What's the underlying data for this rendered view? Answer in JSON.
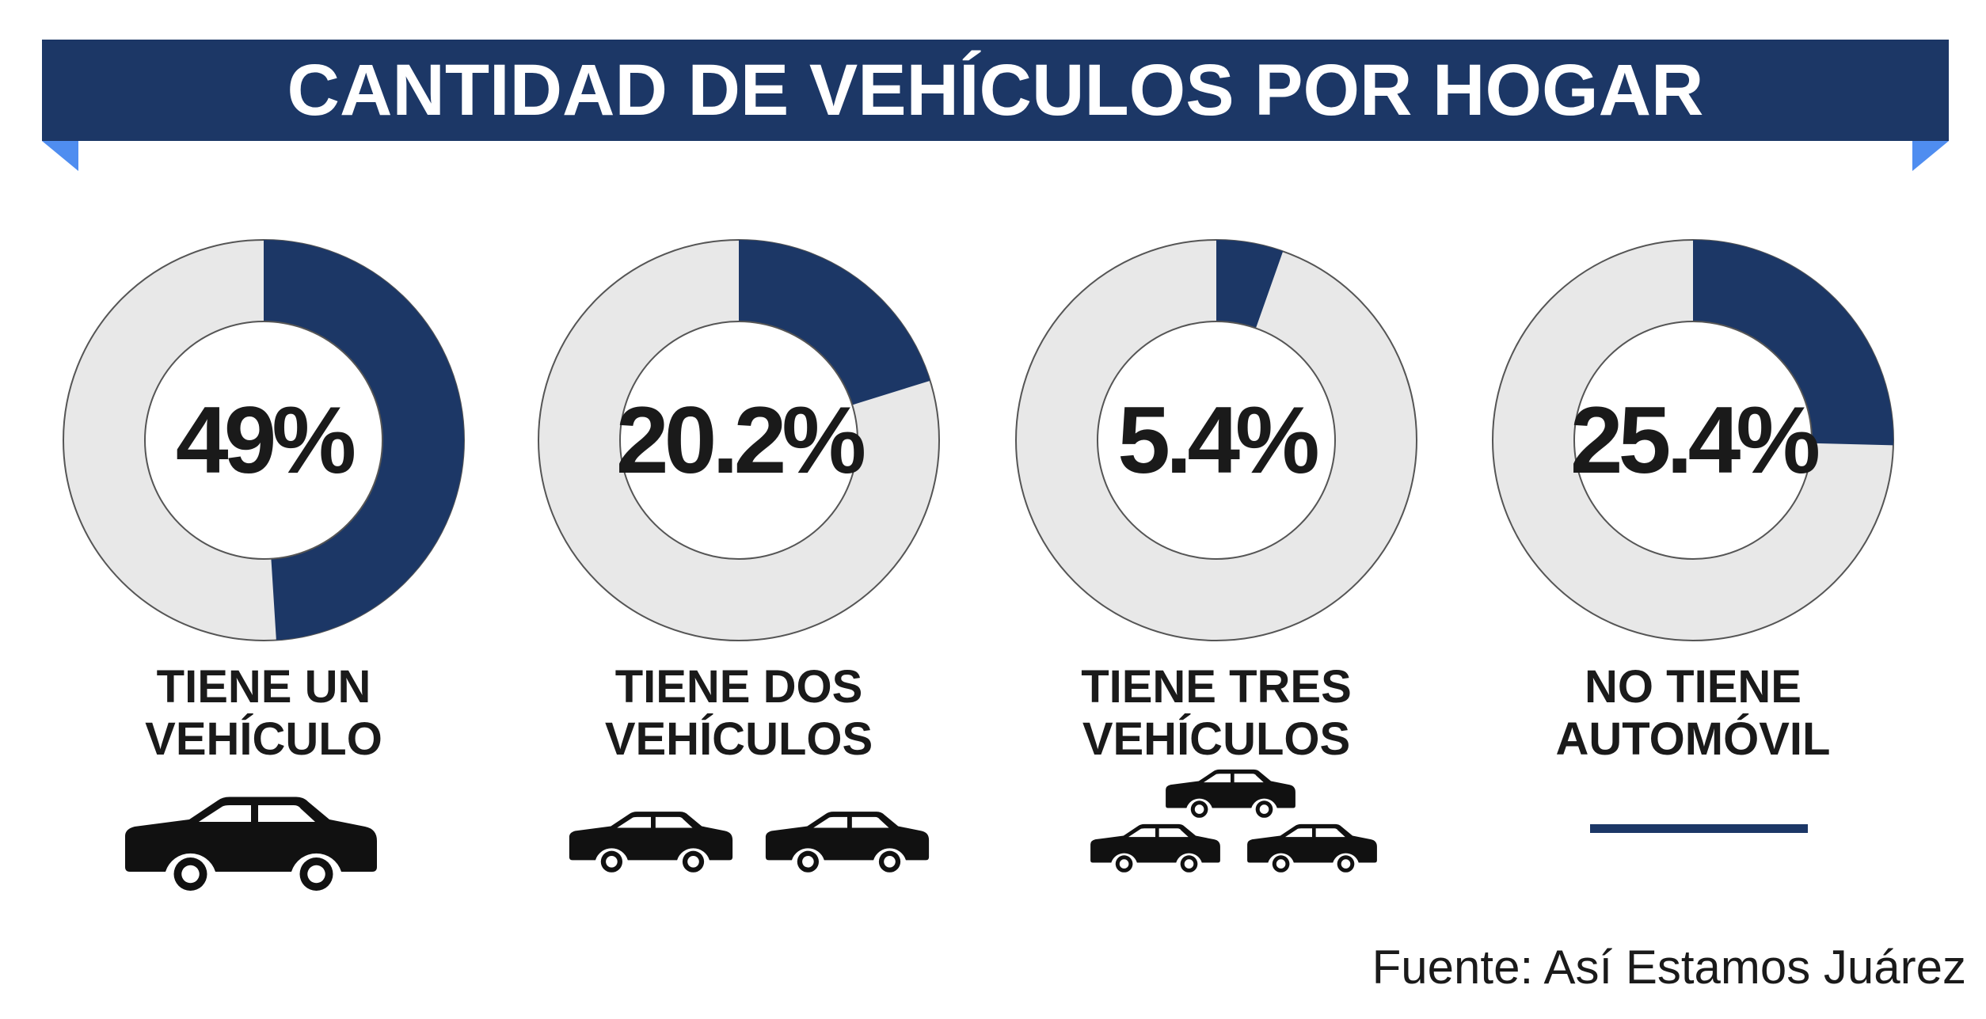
{
  "title": "CANTIDAD DE VEHÍCULOS POR HOGAR",
  "source": "Fuente: Así Estamos Juárez",
  "colors": {
    "banner": "#1c3766",
    "fold": "#4f8df0",
    "filled": "#1c3766",
    "remainder": "#e8e8e8",
    "outline": "#555555",
    "text": "#1a1a1a"
  },
  "chart_data": {
    "type": "pie",
    "title": "CANTIDAD DE VEHÍCULOS POR HOGAR",
    "categories": [
      "TIENE UN VEHÍCULO",
      "TIENE DOS VEHÍCULOS",
      "TIENE TRES VEHÍCULOS",
      "NO TIENE AUTOMÓVIL"
    ],
    "values": [
      49,
      20.2,
      5.4,
      25.4
    ],
    "unit": "%",
    "items": [
      {
        "value": 49,
        "value_label": "49%",
        "label_lines": [
          "TIENE UN",
          "VEHÍCULO"
        ],
        "icon": "car-icon",
        "icon_count": 1
      },
      {
        "value": 20.2,
        "value_label": "20.2%",
        "label_lines": [
          "TIENE DOS",
          "VEHÍCULOS"
        ],
        "icon": "car-icon",
        "icon_count": 2
      },
      {
        "value": 5.4,
        "value_label": "5.4%",
        "label_lines": [
          "TIENE TRES",
          "VEHÍCULOS"
        ],
        "icon": "car-icon",
        "icon_count": 3
      },
      {
        "value": 25.4,
        "value_label": "25.4%",
        "label_lines": [
          "NO TIENE",
          "AUTOMÓVIL"
        ],
        "icon": "dash-icon",
        "icon_count": 0
      }
    ]
  }
}
